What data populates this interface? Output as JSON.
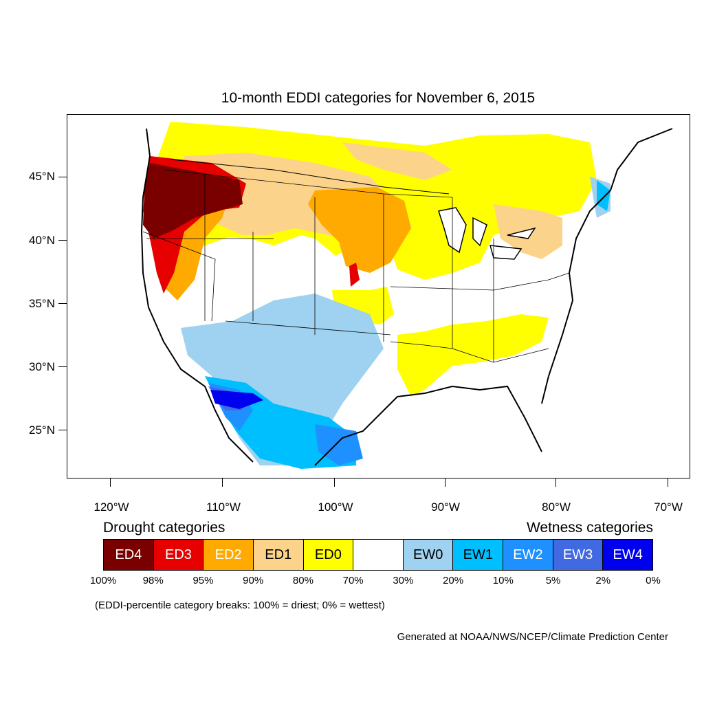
{
  "title": "10-month EDDI categories for November 6, 2015",
  "lat_labels": [
    "45°N",
    "40°N",
    "35°N",
    "30°N",
    "25°N"
  ],
  "lon_labels": [
    "120°W",
    "110°W",
    "100°W",
    "90°W",
    "80°W",
    "70°W"
  ],
  "legend": {
    "drought_heading": "Drought categories",
    "wetness_heading": "Wetness categories",
    "categories": [
      {
        "label": "ED4",
        "color": "#7a0000",
        "text_color": "#ffffff"
      },
      {
        "label": "ED3",
        "color": "#e60000",
        "text_color": "#ffffff"
      },
      {
        "label": "ED2",
        "color": "#ffaa00",
        "text_color": "#ffffff"
      },
      {
        "label": "ED1",
        "color": "#fcd38b",
        "text_color": "#000000"
      },
      {
        "label": "ED0",
        "color": "#ffff00",
        "text_color": "#000000"
      },
      {
        "label": "",
        "color": "#ffffff",
        "text_color": "#000000"
      },
      {
        "label": "EW0",
        "color": "#9fd1f0",
        "text_color": "#000000"
      },
      {
        "label": "EW1",
        "color": "#00bfff",
        "text_color": "#000000"
      },
      {
        "label": "EW2",
        "color": "#1e90ff",
        "text_color": "#ffffff"
      },
      {
        "label": "EW3",
        "color": "#4169e1",
        "text_color": "#ffffff"
      },
      {
        "label": "EW4",
        "color": "#0000ee",
        "text_color": "#ffffff"
      }
    ],
    "percent_breaks": [
      "100%",
      "98%",
      "95%",
      "90%",
      "80%",
      "70%",
      "30%",
      "20%",
      "10%",
      "5%",
      "2%",
      "0%"
    ]
  },
  "note": "(EDDI-percentile category breaks: 100% = driest; 0% = wettest)",
  "credit": "Generated at NOAA/NWS/NCEP/Climate Prediction Center"
}
